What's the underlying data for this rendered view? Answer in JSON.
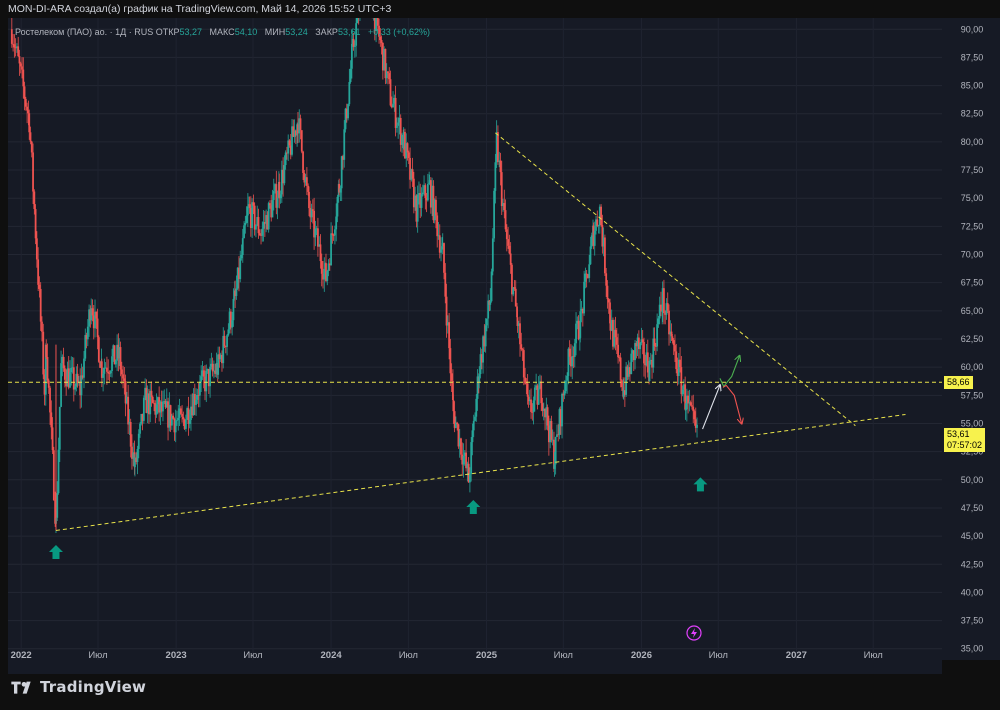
{
  "topbar": {
    "text": "MON-DI-ARA создал(а) график на TradingView.com, Май 14, 2026 15:52 UTC+3"
  },
  "legend": {
    "symbol": "Ростелеком (ПАО) ао. · 1Д · RUS",
    "open_label": "ОТКР",
    "open": "53,27",
    "high_label": "МАКС",
    "high": "54,10",
    "low_label": "МИН",
    "low": "53,24",
    "close_label": "ЗАКР",
    "close": "53,61",
    "change": "+0,33 (+0,62%)"
  },
  "price_tags": {
    "level": "58,66",
    "last": "53,61",
    "countdown": "07:57:02"
  },
  "brand": {
    "name": "TradingView"
  },
  "colors": {
    "background": "#161a25",
    "up": "#26a69a",
    "down": "#ef5350",
    "trendline": "#e8e24a",
    "level_tag": "#f7f24d",
    "arrow_up_marker": "#089981",
    "bolt_icon": "#e040fb"
  },
  "chart_data": {
    "type": "candlestick",
    "y_axis": {
      "range": [
        34,
        91
      ],
      "ticks": [
        "35,00",
        "37,50",
        "40,00",
        "42,50",
        "45,00",
        "47,50",
        "50,00",
        "52,50",
        "55,00",
        "57,50",
        "60,00",
        "62,50",
        "65,00",
        "67,50",
        "70,00",
        "72,50",
        "75,00",
        "77,50",
        "80,00",
        "82,50",
        "85,00",
        "87,50",
        "90,00"
      ]
    },
    "x_axis": {
      "ticks": [
        "2022",
        "Июл",
        "2023",
        "Июл",
        "2024",
        "Июл",
        "2025",
        "Июл",
        "2026",
        "Июл",
        "2027",
        "Июл"
      ]
    },
    "price_path_points": [
      [
        "2021-12-10",
        90.0
      ],
      [
        "2022-01-20",
        82
      ],
      [
        "2022-02-25",
        58
      ],
      [
        "2022-03-01",
        62
      ],
      [
        "2022-03-24",
        46
      ],
      [
        "2022-04-05",
        60
      ],
      [
        "2022-05-20",
        58
      ],
      [
        "2022-06-15",
        66
      ],
      [
        "2022-07-10",
        60
      ],
      [
        "2022-08-20",
        61
      ],
      [
        "2022-09-26",
        51
      ],
      [
        "2022-10-20",
        57
      ],
      [
        "2022-12-01",
        56
      ],
      [
        "2023-01-15",
        55
      ],
      [
        "2023-02-20",
        58
      ],
      [
        "2023-04-10",
        60
      ],
      [
        "2023-05-20",
        66
      ],
      [
        "2023-06-20",
        74
      ],
      [
        "2023-07-20",
        72
      ],
      [
        "2023-09-01",
        76
      ],
      [
        "2023-10-15",
        82
      ],
      [
        "2023-11-10",
        74
      ],
      [
        "2023-12-20",
        68
      ],
      [
        "2024-01-20",
        76
      ],
      [
        "2024-02-20",
        88
      ],
      [
        "2024-03-20",
        95
      ],
      [
        "2024-04-20",
        90
      ],
      [
        "2024-05-20",
        84
      ],
      [
        "2024-06-20",
        80
      ],
      [
        "2024-07-20",
        74
      ],
      [
        "2024-08-20",
        76
      ],
      [
        "2024-09-20",
        70
      ],
      [
        "2024-10-15",
        56
      ],
      [
        "2024-11-20",
        50
      ],
      [
        "2024-12-15",
        60
      ],
      [
        "2025-01-10",
        66
      ],
      [
        "2025-01-25",
        80
      ],
      [
        "2025-02-15",
        72
      ],
      [
        "2025-03-15",
        64
      ],
      [
        "2025-04-10",
        56
      ],
      [
        "2025-05-10",
        58
      ],
      [
        "2025-06-10",
        52
      ],
      [
        "2025-07-10",
        60
      ],
      [
        "2025-08-10",
        64
      ],
      [
        "2025-09-10",
        72
      ],
      [
        "2025-09-25",
        74
      ],
      [
        "2025-10-20",
        64
      ],
      [
        "2025-11-20",
        58
      ],
      [
        "2025-12-20",
        62
      ],
      [
        "2026-01-20",
        60
      ],
      [
        "2026-02-20",
        66
      ],
      [
        "2026-03-15",
        62
      ],
      [
        "2026-04-15",
        57
      ],
      [
        "2026-05-14",
        53.61
      ]
    ],
    "horizontal_level": 58.66,
    "trendlines": [
      {
        "from": [
          "2022-03-24",
          45.5
        ],
        "to": [
          "2027-09-15",
          55.8
        ]
      },
      {
        "from": [
          "2025-01-22",
          80.8
        ],
        "to": [
          "2027-05-20",
          54.8
        ]
      }
    ],
    "scenario_arrows": [
      {
        "from": [
          "2026-05-25",
          54.5
        ],
        "to": [
          "2026-07-05",
          58.4
        ]
      },
      {
        "from": [
          "2026-07-05",
          59.0
        ],
        "to": [
          "2026-08-20",
          61.0
        ]
      },
      {
        "from": [
          "2026-07-12",
          58.2
        ],
        "to": [
          "2026-08-25",
          55.0
        ]
      }
    ],
    "markers": [
      {
        "type": "arrow-up",
        "at": [
          "2022-03-24",
          43.5
        ]
      },
      {
        "type": "arrow-up",
        "at": [
          "2024-12-01",
          47.5
        ]
      },
      {
        "type": "arrow-up",
        "at": [
          "2026-05-20",
          49.5
        ]
      }
    ]
  }
}
